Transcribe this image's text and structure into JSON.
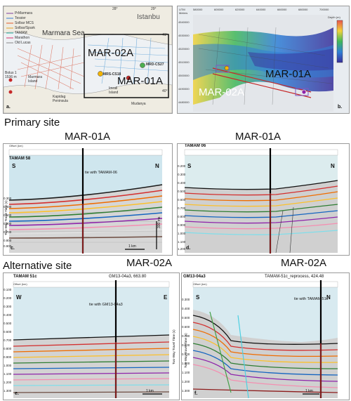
{
  "panel_a": {
    "legend": [
      "PrMarmara",
      "Tessier",
      "Solbar MCS",
      "Solbar/Spark",
      "TAMAM",
      "Marathon",
      "Old Lucas"
    ],
    "places": {
      "sea": "Marmara Sea",
      "city": "Istanbu",
      "island": "Marmara\nIsland",
      "kapidag": "Kapidag\nPeninsula",
      "imrali": "Imrali\nIsland",
      "mudanya": "Mudanya",
      "bolus": "Bolus 1\n1536 m"
    },
    "sites": {
      "site1": "MAR-02A",
      "site2": "MAR-01A",
      "mrs": "MRS-CS18",
      "mrd": "MRD-CS27"
    },
    "lon_labels": [
      "28°",
      "29°"
    ],
    "lat_labels": [
      "41°",
      "40°"
    ],
    "corner": "a."
  },
  "panel_b": {
    "sites": {
      "a": "MAR-01A",
      "b": "MAR-02A"
    },
    "corner": "b.",
    "header_left": "UTM\nMeters",
    "x_ticks": [
      "580000",
      "600000",
      "620000",
      "640000",
      "660000",
      "680000",
      "700000"
    ],
    "y_ticks": [
      "4540000",
      "4530000",
      "4520000",
      "4510000",
      "4500000",
      "4490000",
      "4480000"
    ],
    "colorbar": "Depth (m)"
  },
  "primary": {
    "heading": "Primary site",
    "c_title": "MAR-01A",
    "d_title": "MAR-01A"
  },
  "alternative": {
    "heading": "Alternative site",
    "e_title": "MAR-02A",
    "f_title": "MAR-02A"
  },
  "panel_c": {
    "line": "TAMAM 58",
    "tie": "tie with TAMAM-06",
    "dirs": [
      "S",
      "N"
    ],
    "scale": "1 km",
    "twt": "300 ms",
    "corner": "c.",
    "y_ticks": [
      "0.300",
      "0.400",
      "0.500",
      "0.600",
      "0.700",
      "0.800",
      "0.900",
      "1.000",
      "1.100",
      "1.200"
    ],
    "ylabel": "Two-Way Travel Time (s)",
    "offset": "Offset (km)"
  },
  "panel_d": {
    "line": "TAMAM 06",
    "dirs": [
      "S",
      "N"
    ],
    "corner": "d.",
    "y_ticks": [
      "0.200",
      "0.300",
      "0.400",
      "0.500",
      "0.600",
      "0.700",
      "0.800",
      "0.900",
      "1.000",
      "1.100",
      "1.200"
    ]
  },
  "panel_e": {
    "line": "TAMAM 51c",
    "top": "GM13-04a3, 663.80",
    "tie": "tie with GM13-04a3",
    "dirs": [
      "W",
      "E"
    ],
    "corner": "e.",
    "scale": "1 km",
    "y_ticks": [
      "0.100",
      "0.200",
      "0.300",
      "0.400",
      "0.500",
      "0.600",
      "0.700",
      "0.800",
      "0.900",
      "1.000",
      "1.100",
      "1.200",
      "1.300"
    ],
    "ylabel": "Two-Way Travel Time (s)",
    "offset": "Offset (km)"
  },
  "panel_f": {
    "line": "GM13-04a3",
    "top": "TAMAM-51c_reprocess, 424.48",
    "tie": "tie with TAMAM 51c",
    "dirs": [
      "S",
      "N"
    ],
    "corner": "f.",
    "scale": "1 km",
    "y_ticks": [
      "0.300",
      "0.400",
      "0.500",
      "0.600",
      "0.700",
      "0.800",
      "0.900",
      "1.000",
      "1.100",
      "1.200",
      "1.300"
    ],
    "ylabel": "Two-Way Travel Time (s)",
    "offset": "Offset (km)"
  }
}
